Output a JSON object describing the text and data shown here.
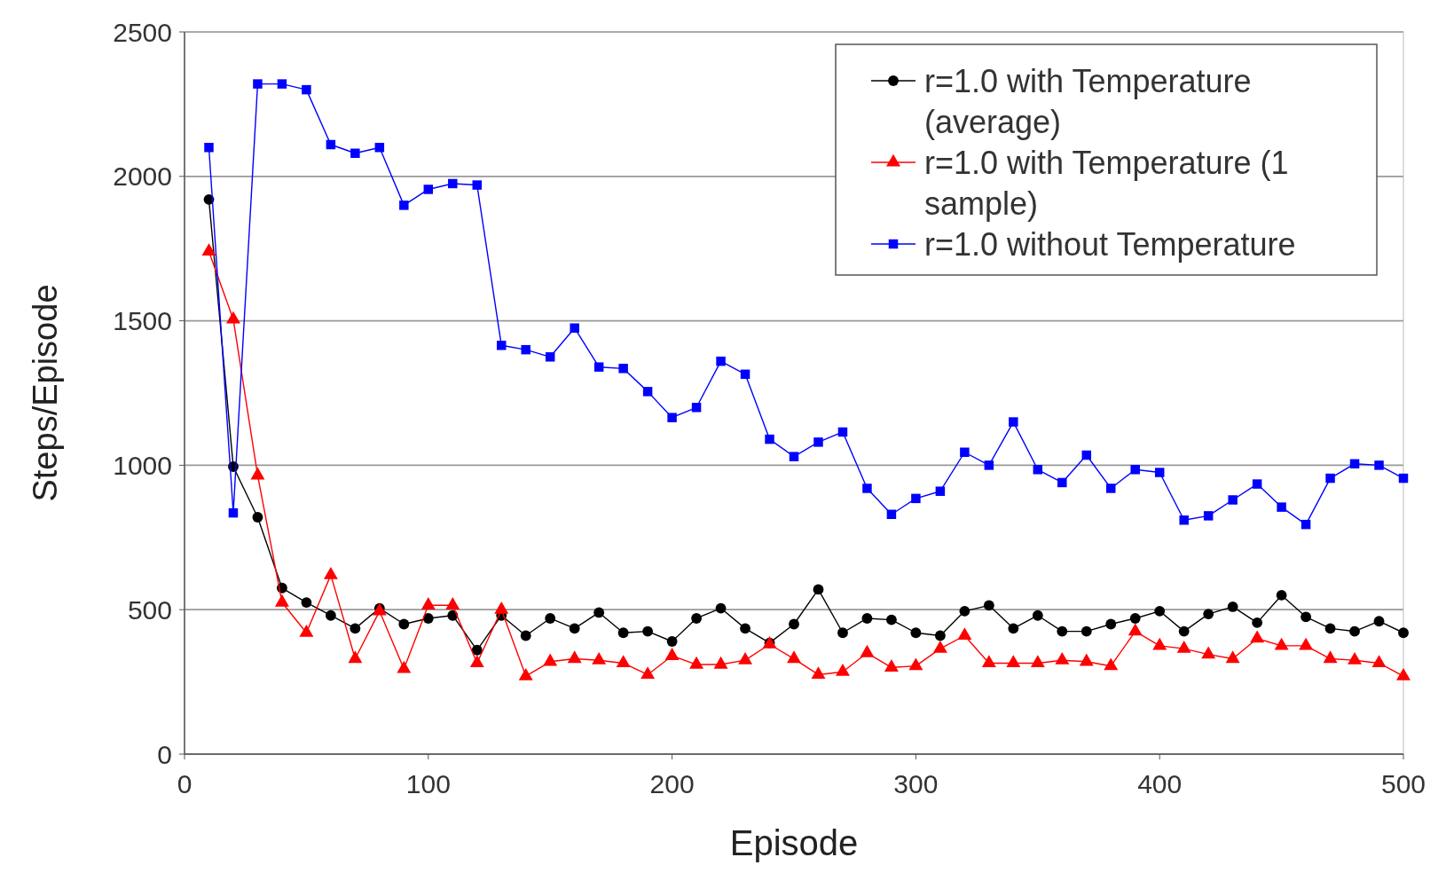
{
  "chart_data": {
    "type": "line",
    "xlabel": "Episode",
    "ylabel": "Steps/Episode",
    "x": [
      10,
      20,
      30,
      40,
      50,
      60,
      70,
      80,
      90,
      100,
      110,
      120,
      130,
      140,
      150,
      160,
      170,
      180,
      190,
      200,
      210,
      220,
      230,
      240,
      250,
      260,
      270,
      280,
      290,
      300,
      310,
      320,
      330,
      340,
      350,
      360,
      370,
      380,
      390,
      400,
      410,
      420,
      430,
      440,
      450,
      460,
      470,
      480,
      490,
      500
    ],
    "series": [
      {
        "name": "r=1.0 with Temperature (average)",
        "color": "#000000",
        "marker": "circle",
        "values": [
          1920,
          995,
          820,
          575,
          525,
          480,
          435,
          505,
          450,
          470,
          480,
          360,
          480,
          410,
          470,
          435,
          490,
          420,
          425,
          390,
          470,
          505,
          435,
          385,
          450,
          570,
          420,
          470,
          465,
          420,
          410,
          495,
          515,
          435,
          480,
          425,
          425,
          450,
          470,
          495,
          425,
          485,
          510,
          455,
          550,
          475,
          435,
          425,
          460,
          420
        ]
      },
      {
        "name": "r=1.0 with Temperature (1 sample)",
        "color": "#ff0000",
        "marker": "triangle",
        "values": [
          1740,
          1505,
          965,
          525,
          420,
          620,
          330,
          495,
          295,
          515,
          515,
          315,
          500,
          270,
          320,
          330,
          325,
          315,
          275,
          340,
          310,
          310,
          325,
          380,
          330,
          275,
          285,
          350,
          300,
          305,
          365,
          410,
          315,
          315,
          315,
          325,
          320,
          305,
          425,
          375,
          365,
          345,
          330,
          400,
          375,
          375,
          330,
          325,
          315,
          270
        ]
      },
      {
        "name": "r=1.0 without Temperature",
        "color": "#0000ff",
        "marker": "square",
        "values": [
          2100,
          835,
          2320,
          2320,
          2300,
          2110,
          2080,
          2100,
          1900,
          1955,
          1975,
          1970,
          1415,
          1400,
          1375,
          1475,
          1340,
          1335,
          1255,
          1165,
          1200,
          1360,
          1315,
          1090,
          1030,
          1080,
          1115,
          920,
          830,
          885,
          910,
          1045,
          1000,
          1150,
          985,
          940,
          1035,
          920,
          985,
          975,
          810,
          825,
          880,
          935,
          855,
          795,
          955,
          1005,
          1000,
          955
        ]
      }
    ],
    "xlim": [
      0,
      500
    ],
    "xticks": [
      0,
      100,
      200,
      300,
      400,
      500
    ],
    "ylim": [
      0,
      2500
    ],
    "yticks": [
      0,
      500,
      1000,
      1500,
      2000,
      2500
    ],
    "grid": "y",
    "legend": "top right",
    "line_style": "solid"
  }
}
